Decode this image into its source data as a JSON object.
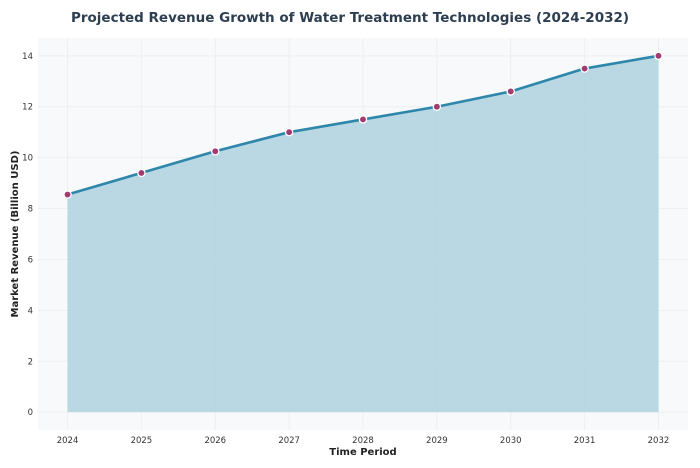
{
  "chart_data": {
    "type": "area",
    "title": "Projected Revenue Growth of Water Treatment Technologies (2024-2032)",
    "xlabel": "Time Period",
    "ylabel": "Market Revenue (Billion USD)",
    "categories": [
      "2024",
      "2025",
      "2026",
      "2027",
      "2028",
      "2029",
      "2030",
      "2031",
      "2032"
    ],
    "values": [
      8.55,
      9.4,
      10.25,
      11.0,
      11.5,
      12.0,
      12.6,
      13.5,
      14.0
    ],
    "yticks": [
      0,
      2,
      4,
      6,
      8,
      10,
      12,
      14
    ],
    "ylim": [
      -0.7,
      14.7
    ],
    "xlim": [
      2023.6,
      2032.4
    ],
    "grid": true,
    "colors": {
      "line": "#2e86ab",
      "fill": "#a9cfdd",
      "marker": "#a23b72",
      "plot_bg": "#f7f9fb"
    }
  }
}
